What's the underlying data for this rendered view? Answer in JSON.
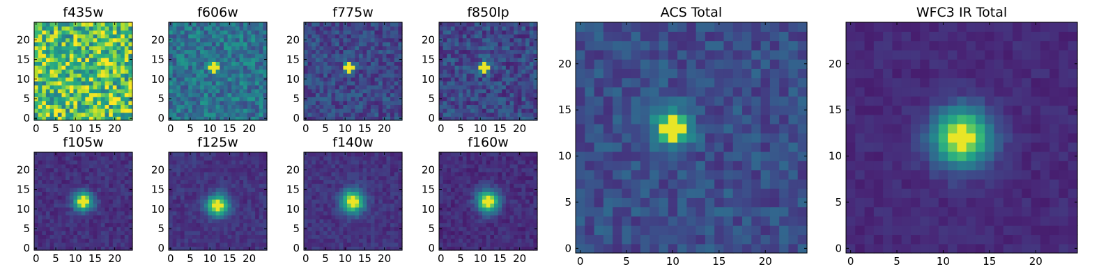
{
  "chart_data": [
    {
      "type": "heatmap",
      "title": "f435w",
      "grid_size": 25,
      "colormap": "viridis",
      "peak": [
        12,
        12
      ],
      "peak_value": 0.0,
      "halo_width": 0.0,
      "noise": 0.32,
      "base": 0.72,
      "xticks": [
        0,
        5,
        10,
        15,
        20
      ],
      "yticks": [
        0,
        5,
        10,
        15,
        20
      ],
      "xlim": [
        0,
        24
      ],
      "ylim": [
        0,
        24
      ]
    },
    {
      "type": "heatmap",
      "title": "f606w",
      "grid_size": 25,
      "colormap": "viridis",
      "peak": [
        11,
        13
      ],
      "peak_value": 0.62,
      "halo_width": 0.9,
      "noise": 0.16,
      "base": 0.38,
      "xticks": [
        0,
        5,
        10,
        15,
        20
      ],
      "yticks": [
        0,
        5,
        10,
        15,
        20
      ],
      "xlim": [
        0,
        24
      ],
      "ylim": [
        0,
        24
      ]
    },
    {
      "type": "heatmap",
      "title": "f775w",
      "grid_size": 25,
      "colormap": "viridis",
      "peak": [
        11,
        13
      ],
      "peak_value": 0.75,
      "halo_width": 0.85,
      "noise": 0.12,
      "base": 0.22,
      "xticks": [
        0,
        5,
        10,
        15,
        20
      ],
      "yticks": [
        0,
        5,
        10,
        15,
        20
      ],
      "xlim": [
        0,
        24
      ],
      "ylim": [
        0,
        24
      ]
    },
    {
      "type": "heatmap",
      "title": "f850lp",
      "grid_size": 25,
      "colormap": "viridis",
      "peak": [
        11,
        13
      ],
      "peak_value": 0.72,
      "halo_width": 0.9,
      "noise": 0.13,
      "base": 0.22,
      "xticks": [
        0,
        5,
        10,
        15,
        20
      ],
      "yticks": [
        0,
        5,
        10,
        15,
        20
      ],
      "xlim": [
        0,
        24
      ],
      "ylim": [
        0,
        24
      ]
    },
    {
      "type": "heatmap",
      "title": "f105w",
      "grid_size": 25,
      "colormap": "viridis",
      "peak": [
        12,
        12
      ],
      "peak_value": 0.82,
      "halo_width": 1.7,
      "noise": 0.06,
      "base": 0.14,
      "xticks": [
        0,
        5,
        10,
        15,
        20
      ],
      "yticks": [
        0,
        5,
        10,
        15,
        20
      ],
      "xlim": [
        0,
        24
      ],
      "ylim": [
        0,
        24
      ]
    },
    {
      "type": "heatmap",
      "title": "f125w",
      "grid_size": 25,
      "colormap": "viridis",
      "peak": [
        12,
        11
      ],
      "peak_value": 0.82,
      "halo_width": 1.9,
      "noise": 0.06,
      "base": 0.15,
      "xticks": [
        0,
        5,
        10,
        15,
        20
      ],
      "yticks": [
        0,
        5,
        10,
        15,
        20
      ],
      "xlim": [
        0,
        24
      ],
      "ylim": [
        0,
        24
      ]
    },
    {
      "type": "heatmap",
      "title": "f140w",
      "grid_size": 25,
      "colormap": "viridis",
      "peak": [
        12,
        12
      ],
      "peak_value": 0.82,
      "halo_width": 2.0,
      "noise": 0.06,
      "base": 0.15,
      "xticks": [
        0,
        5,
        10,
        15,
        20
      ],
      "yticks": [
        0,
        5,
        10,
        15,
        20
      ],
      "xlim": [
        0,
        24
      ],
      "ylim": [
        0,
        24
      ]
    },
    {
      "type": "heatmap",
      "title": "f160w",
      "grid_size": 25,
      "colormap": "viridis",
      "peak": [
        12,
        12
      ],
      "peak_value": 0.82,
      "halo_width": 2.0,
      "noise": 0.06,
      "base": 0.13,
      "xticks": [
        0,
        5,
        10,
        15,
        20
      ],
      "yticks": [
        0,
        5,
        10,
        15,
        20
      ],
      "xlim": [
        0,
        24
      ],
      "ylim": [
        0,
        24
      ]
    },
    {
      "type": "heatmap",
      "title": "ACS Total",
      "grid_size": 25,
      "colormap": "viridis",
      "peak": [
        10,
        13
      ],
      "peak_value": 0.78,
      "halo_width": 1.3,
      "noise": 0.1,
      "base": 0.24,
      "xticks": [
        0,
        5,
        10,
        15,
        20
      ],
      "yticks": [
        0,
        5,
        10,
        15,
        20
      ],
      "xlim": [
        0,
        24
      ],
      "ylim": [
        0,
        24
      ]
    },
    {
      "type": "heatmap",
      "title": "WFC3 IR Total",
      "grid_size": 25,
      "colormap": "viridis",
      "peak": [
        12,
        12
      ],
      "peak_value": 0.82,
      "halo_width": 2.2,
      "noise": 0.04,
      "base": 0.12,
      "xticks": [
        0,
        5,
        10,
        15,
        20
      ],
      "yticks": [
        0,
        5,
        10,
        15,
        20
      ],
      "xlim": [
        0,
        24
      ],
      "ylim": [
        0,
        24
      ]
    }
  ]
}
